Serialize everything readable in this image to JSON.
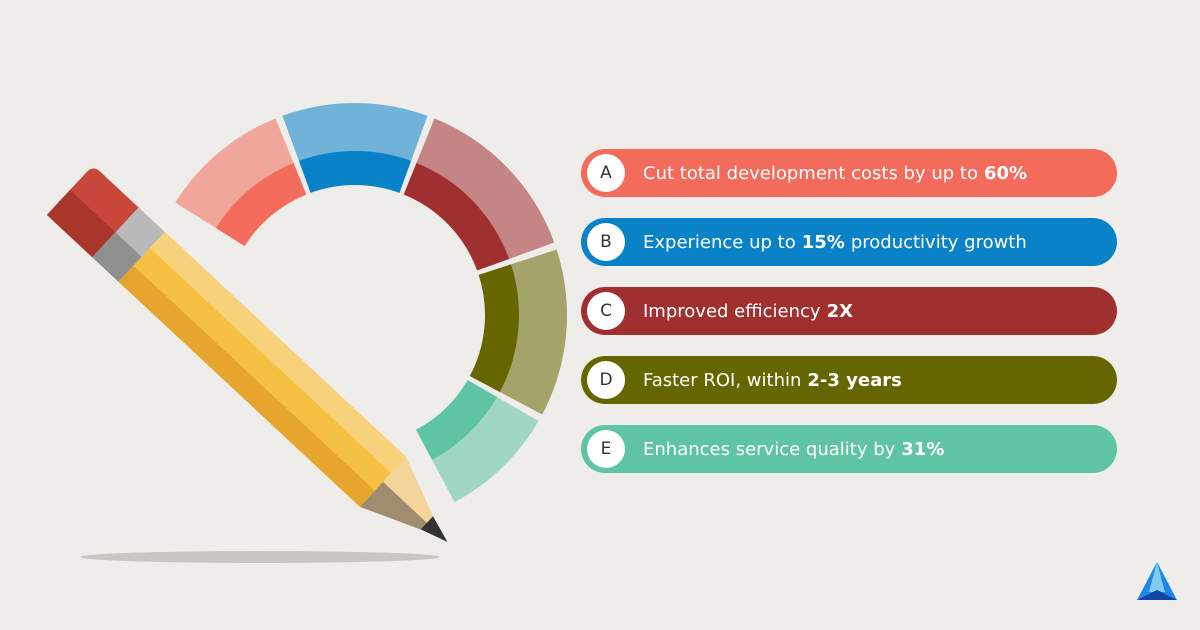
{
  "items": [
    {
      "letter": "A",
      "color": "#f26b5b",
      "parts": [
        {
          "text": "Cut total development costs by up to"
        },
        {
          "text": "60%",
          "bold": true
        }
      ]
    },
    {
      "letter": "B",
      "color": "#0a82c8",
      "parts": [
        {
          "text": "Experience up to"
        },
        {
          "text": "15%",
          "bold": true
        },
        {
          "text": "productivity growth"
        }
      ]
    },
    {
      "letter": "C",
      "color": "#a0302f",
      "parts": [
        {
          "text": "Improved efficiency"
        },
        {
          "text": "2X",
          "bold": true
        }
      ]
    },
    {
      "letter": "D",
      "color": "#666600",
      "parts": [
        {
          "text": "Faster ROI, within"
        },
        {
          "text": "2-3 years",
          "bold": true
        }
      ]
    },
    {
      "letter": "E",
      "color": "#5fc4a3",
      "parts": [
        {
          "text": "Enhances service quality by"
        },
        {
          "text": "31%",
          "bold": true
        }
      ]
    }
  ]
}
